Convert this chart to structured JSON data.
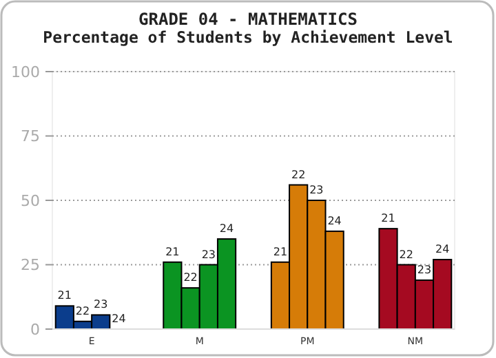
{
  "chart_data": {
    "type": "bar",
    "title": "GRADE 04 - MATHEMATICS",
    "subtitle": "Percentage of Students by Achievement Level",
    "categories": [
      "E",
      "M",
      "PM",
      "NM"
    ],
    "series": [
      {
        "name": "21",
        "colors": [
          "#0b3d8c",
          "#0b9422",
          "#d67c08",
          "#a50a21"
        ],
        "values": [
          9,
          26,
          26,
          39
        ]
      },
      {
        "name": "22",
        "colors": [
          "#0b3d8c",
          "#0b9422",
          "#d67c08",
          "#a50a21"
        ],
        "values": [
          3,
          16,
          56,
          25
        ]
      },
      {
        "name": "23",
        "colors": [
          "#0b3d8c",
          "#0b9422",
          "#d67c08",
          "#a50a21"
        ],
        "values": [
          5.5,
          25,
          50,
          19
        ]
      },
      {
        "name": "24",
        "colors": [
          "#0b3d8c",
          "#0b9422",
          "#d67c08",
          "#a50a21"
        ],
        "values": [
          0,
          35,
          38,
          27
        ]
      }
    ],
    "ylim": [
      0,
      100
    ],
    "yticks": [
      0,
      25,
      50,
      75,
      100
    ],
    "grid": "y"
  }
}
